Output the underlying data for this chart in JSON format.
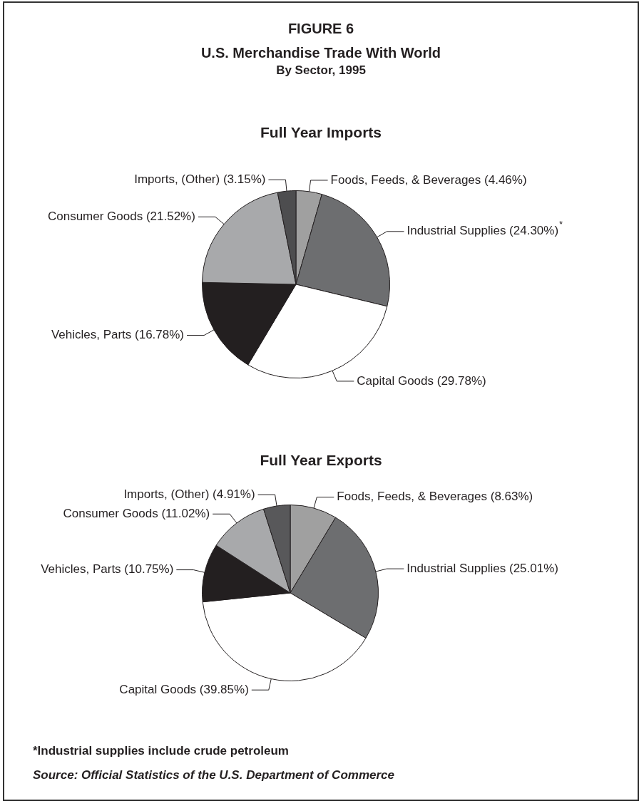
{
  "chart_data": [
    {
      "type": "other",
      "title": "U.S. Merchandise Trade With World",
      "subtitle": "By Sector, 1995",
      "annotations": [
        "FIGURE 6"
      ]
    },
    {
      "type": "pie",
      "title": "Full Year Imports",
      "categories": [
        "Foods, Feeds, & Beverages",
        "Industrial Supplies",
        "Capital Goods",
        "Vehicles, Parts",
        "Consumer Goods",
        "Imports, (Other)"
      ],
      "values": [
        4.46,
        24.3,
        29.78,
        16.78,
        21.52,
        3.15
      ],
      "value_labels": [
        "(4.46%)",
        "(24.30%)$^{*}$",
        "(29.78%)",
        "(16.78%)",
        "(21.52%)",
        "(3.15%)"
      ],
      "colors": [
        "#a0a0a0",
        "#6d6e70",
        "#ffffff",
        "#231f20",
        "#a8a9ab",
        "#4d4d4f"
      ]
    },
    {
      "type": "pie",
      "title": "Full Year Exports",
      "categories": [
        "Foods, Feeds, & Beverages",
        "Industrial Supplies",
        "Capital Goods",
        "Vehicles, Parts",
        "Consumer Goods",
        "Imports, (Other)"
      ],
      "values": [
        8.63,
        25.01,
        39.85,
        10.75,
        11.02,
        4.91
      ],
      "value_labels": [
        "(8.63%)",
        "(25.01%)",
        "(39.85%)",
        "(10.75%)",
        "(11.02%)",
        "(4.91%)"
      ],
      "colors": [
        "#a0a0a0",
        "#6d6e70",
        "#ffffff",
        "#231f20",
        "#a8a9ab",
        "#58585a"
      ],
      "annotations": [
        "*Industrial supplies include crude petroleum",
        "Source: Official Statistics of the U.S. Department of Commerce"
      ]
    }
  ]
}
